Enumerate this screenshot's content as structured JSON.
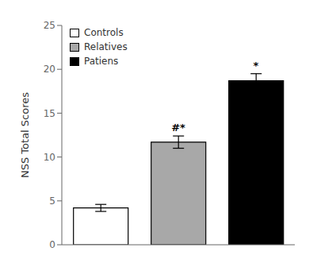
{
  "chart_data": {
    "type": "bar",
    "categories": [
      "Controls",
      "Relatives",
      "Patiens"
    ],
    "values": [
      4.2,
      11.7,
      18.7
    ],
    "errors": [
      0.4,
      0.7,
      0.8
    ],
    "colors": [
      "#ffffff",
      "#a8a8a8",
      "#000000"
    ],
    "ylim": [
      0,
      25
    ],
    "yticks": [
      0,
      5,
      10,
      15,
      20,
      25
    ],
    "ylabel": "NSS Total Scores",
    "annotations": [
      {
        "category": "Relatives",
        "text": "#*"
      },
      {
        "category": "Patiens",
        "text": "*"
      }
    ],
    "legend": "upper left",
    "grid": false,
    "tick_labels": "y"
  }
}
